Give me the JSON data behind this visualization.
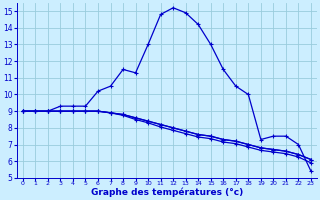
{
  "xlabel": "Graphe des températures (°c)",
  "background_color": "#cceeff",
  "line_color": "#0000cc",
  "grid_color": "#99ccdd",
  "hours": [
    0,
    1,
    2,
    3,
    4,
    5,
    6,
    7,
    8,
    9,
    10,
    11,
    12,
    13,
    14,
    15,
    16,
    17,
    18,
    19,
    20,
    21,
    22,
    23
  ],
  "temp_main": [
    9.0,
    9.0,
    9.0,
    9.3,
    9.3,
    9.3,
    10.2,
    10.5,
    11.5,
    11.3,
    13.0,
    14.8,
    15.2,
    14.9,
    14.2,
    13.0,
    11.5,
    10.5,
    10.0,
    7.3,
    7.5,
    7.5,
    7.0,
    5.4
  ],
  "temp_line2": [
    9.0,
    9.0,
    9.0,
    9.0,
    9.0,
    9.0,
    9.0,
    8.9,
    8.8,
    8.6,
    8.4,
    8.2,
    8.0,
    7.8,
    7.6,
    7.5,
    7.3,
    7.2,
    7.0,
    6.8,
    6.7,
    6.6,
    6.4,
    6.1
  ],
  "temp_line3": [
    9.0,
    9.0,
    9.0,
    9.0,
    9.0,
    9.0,
    9.0,
    8.9,
    8.8,
    8.6,
    8.4,
    8.2,
    8.0,
    7.8,
    7.6,
    7.5,
    7.3,
    7.2,
    7.0,
    6.8,
    6.7,
    6.6,
    6.4,
    6.1
  ],
  "temp_line4": [
    9.0,
    9.0,
    9.0,
    9.0,
    9.0,
    9.0,
    9.0,
    8.9,
    8.75,
    8.5,
    8.3,
    8.05,
    7.85,
    7.65,
    7.45,
    7.35,
    7.15,
    7.05,
    6.85,
    6.65,
    6.55,
    6.45,
    6.25,
    5.9
  ],
  "ylim": [
    5,
    15.5
  ],
  "xlim": [
    -0.5,
    23.5
  ],
  "yticks": [
    5,
    6,
    7,
    8,
    9,
    10,
    11,
    12,
    13,
    14,
    15
  ],
  "xticks": [
    0,
    1,
    2,
    3,
    4,
    5,
    6,
    7,
    8,
    9,
    10,
    11,
    12,
    13,
    14,
    15,
    16,
    17,
    18,
    19,
    20,
    21,
    22,
    23
  ]
}
